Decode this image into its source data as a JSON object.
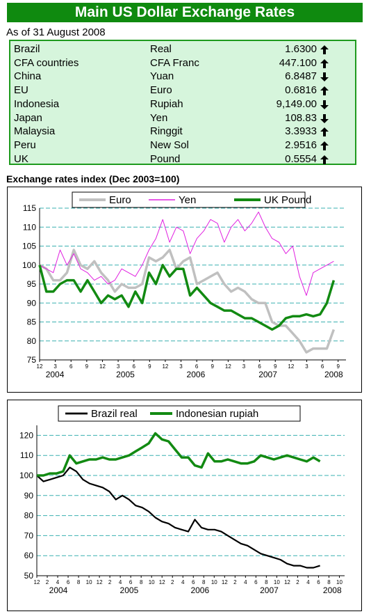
{
  "header": {
    "title": "Main US Dollar Exchange Rates",
    "as_of": "As of 31 August 2008"
  },
  "rates": [
    {
      "country": "Brazil",
      "currency": "Real",
      "value": "1.6300",
      "trend": "up"
    },
    {
      "country": "CFA countries",
      "currency": "CFA Franc",
      "value": "447.100",
      "trend": "up"
    },
    {
      "country": "China",
      "currency": "Yuan",
      "value": "6.8487",
      "trend": "down"
    },
    {
      "country": "EU",
      "currency": "Euro",
      "value": "0.6816",
      "trend": "up"
    },
    {
      "country": "Indonesia",
      "currency": "Rupiah",
      "value": "9,149.00",
      "trend": "down"
    },
    {
      "country": "Japan",
      "currency": "Yen",
      "value": "108.83",
      "trend": "down"
    },
    {
      "country": "Malaysia",
      "currency": "Ringgit",
      "value": "3.3933",
      "trend": "up"
    },
    {
      "country": "Peru",
      "currency": "New Sol",
      "value": "2.9516",
      "trend": "up"
    },
    {
      "country": "UK",
      "currency": "Pound",
      "value": "0.5554",
      "trend": "up"
    }
  ],
  "section_title": "Exchange rates index (Dec 2003=100)",
  "colors": {
    "header_bg": "#0f8a0f",
    "table_bg": "#d6f5dc",
    "table_border": "#1e9a1e",
    "euro": "#c0c0c0",
    "yen": "#e020e0",
    "uk_pound": "#128a12",
    "brazil_real": "#000000",
    "indonesian_rupiah": "#128a12",
    "gridline": "#3ab0b0"
  },
  "chart_data": [
    {
      "type": "line",
      "ylim": [
        75,
        115
      ],
      "yticks": [
        75,
        80,
        85,
        90,
        95,
        100,
        105,
        110,
        115
      ],
      "x_month_labels": [
        "12",
        "3",
        "6",
        "9",
        "12",
        "3",
        "6",
        "9",
        "12",
        "3",
        "6",
        "9",
        "12",
        "3",
        "6",
        "9",
        "12",
        "3",
        "6",
        "9"
      ],
      "x_year_labels": [
        "2004",
        "2005",
        "2006",
        "2007",
        "2008"
      ],
      "legend_position": "top",
      "grid": true,
      "series": [
        {
          "name": "Euro",
          "color_key": "euro",
          "values": [
            100,
            99,
            96,
            96,
            98,
            104,
            100,
            99,
            101,
            98,
            96,
            93,
            95,
            94,
            94,
            95,
            102,
            101,
            102,
            104,
            99,
            101,
            102,
            95,
            96,
            97,
            98,
            95,
            93,
            94,
            93,
            91,
            90,
            90,
            85,
            84,
            84,
            82,
            80,
            77,
            78,
            78,
            78,
            83
          ]
        },
        {
          "name": "Yen",
          "color_key": "yen",
          "values": [
            100,
            99,
            98,
            104,
            100,
            103,
            99,
            98,
            96,
            97,
            95,
            96,
            99,
            98,
            97,
            100,
            104,
            107,
            112,
            106,
            110,
            109,
            103,
            107,
            109,
            112,
            111,
            106,
            110,
            112,
            109,
            111,
            114,
            110,
            107,
            106,
            103,
            105,
            97,
            92,
            98,
            99,
            100,
            101
          ]
        },
        {
          "name": "UK Pound",
          "color_key": "uk_pound",
          "values": [
            100,
            93,
            93,
            95,
            96,
            96,
            93,
            96,
            93,
            90,
            92,
            91,
            92,
            89,
            93,
            90,
            98,
            95,
            100,
            97,
            99,
            99,
            92,
            94,
            92,
            90,
            89,
            88,
            88,
            87,
            86,
            86,
            85,
            84,
            83,
            84,
            86,
            86.5,
            86.5,
            87,
            86.5,
            87,
            90,
            96
          ]
        }
      ]
    },
    {
      "type": "line",
      "ylim": [
        50,
        125
      ],
      "yticks": [
        50,
        60,
        70,
        80,
        90,
        100,
        110,
        120
      ],
      "x_month_labels": [
        "12",
        "2",
        "4",
        "6",
        "8",
        "10",
        "12",
        "2",
        "4",
        "6",
        "8",
        "10",
        "12",
        "2",
        "4",
        "6",
        "8",
        "10",
        "12",
        "2",
        "4",
        "6",
        "8",
        "10",
        "12",
        "2",
        "4",
        "6",
        "8",
        "10"
      ],
      "x_year_labels": [
        "2004",
        "2005",
        "2006",
        "2007",
        "2008"
      ],
      "legend_position": "top",
      "grid": true,
      "series": [
        {
          "name": "Brazil real",
          "color_key": "brazil_real",
          "values": [
            100,
            97,
            98,
            99,
            100,
            104,
            102,
            98,
            96,
            95,
            94,
            92,
            88,
            90,
            88,
            85,
            84,
            82,
            79,
            77,
            76,
            74,
            73,
            72,
            78,
            74,
            73,
            73,
            72,
            70,
            68,
            66,
            65,
            63,
            61,
            60,
            59,
            58,
            56,
            55,
            55,
            54,
            54,
            55
          ]
        },
        {
          "name": "Indonesian rupiah",
          "color_key": "indonesian_rupiah",
          "values": [
            100,
            100,
            101,
            101,
            102,
            110,
            106,
            107,
            108,
            108,
            109,
            108,
            108,
            109,
            110,
            112,
            114,
            116,
            121,
            118,
            117,
            113,
            109,
            109,
            105,
            104,
            111,
            107,
            107,
            108,
            107,
            106,
            106,
            107,
            110,
            109,
            108,
            109,
            110,
            109,
            108,
            107,
            109,
            107
          ]
        }
      ]
    }
  ]
}
